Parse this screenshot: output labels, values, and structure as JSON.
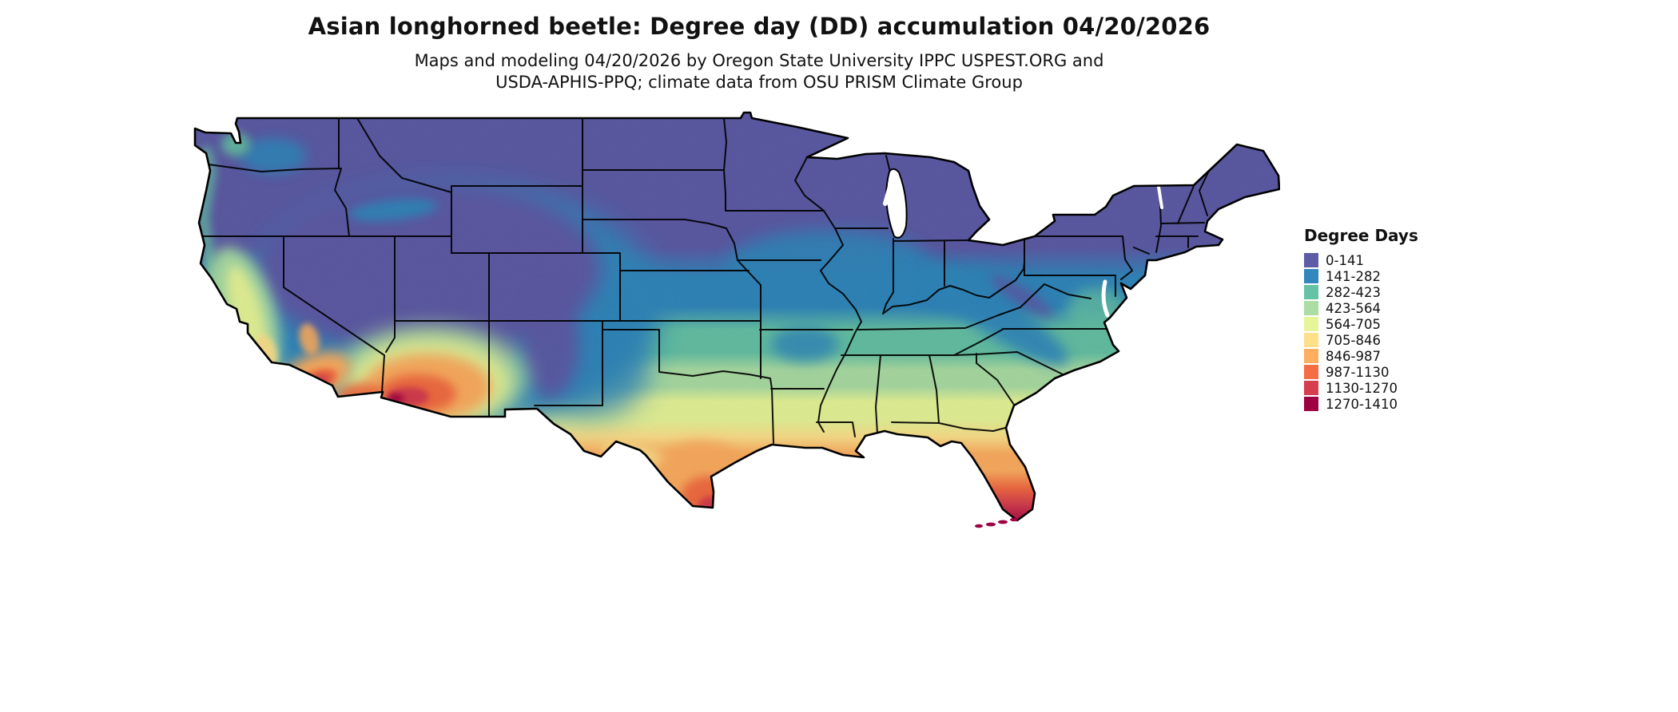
{
  "title": "Asian longhorned beetle: Degree day (DD) accumulation 04/20/2026",
  "subtitle": {
    "line1": "Maps and modeling 04/20/2026 by Oregon State University IPPC USPEST.ORG and",
    "line2": "USDA-APHIS-PPQ; climate data from OSU PRISM Climate Group"
  },
  "legend": {
    "title": "Degree Days",
    "items": [
      {
        "label": "0-141",
        "color": "#5e5ca7"
      },
      {
        "label": "141-282",
        "color": "#3288bd"
      },
      {
        "label": "282-423",
        "color": "#66c2a5"
      },
      {
        "label": "423-564",
        "color": "#abdda4"
      },
      {
        "label": "564-705",
        "color": "#e6f598"
      },
      {
        "label": "705-846",
        "color": "#fee08b"
      },
      {
        "label": "846-987",
        "color": "#fdae61"
      },
      {
        "label": "987-1130",
        "color": "#f46d43"
      },
      {
        "label": "1130-1270",
        "color": "#d53e4f"
      },
      {
        "label": "1270-1410",
        "color": "#9e0142"
      }
    ]
  }
}
